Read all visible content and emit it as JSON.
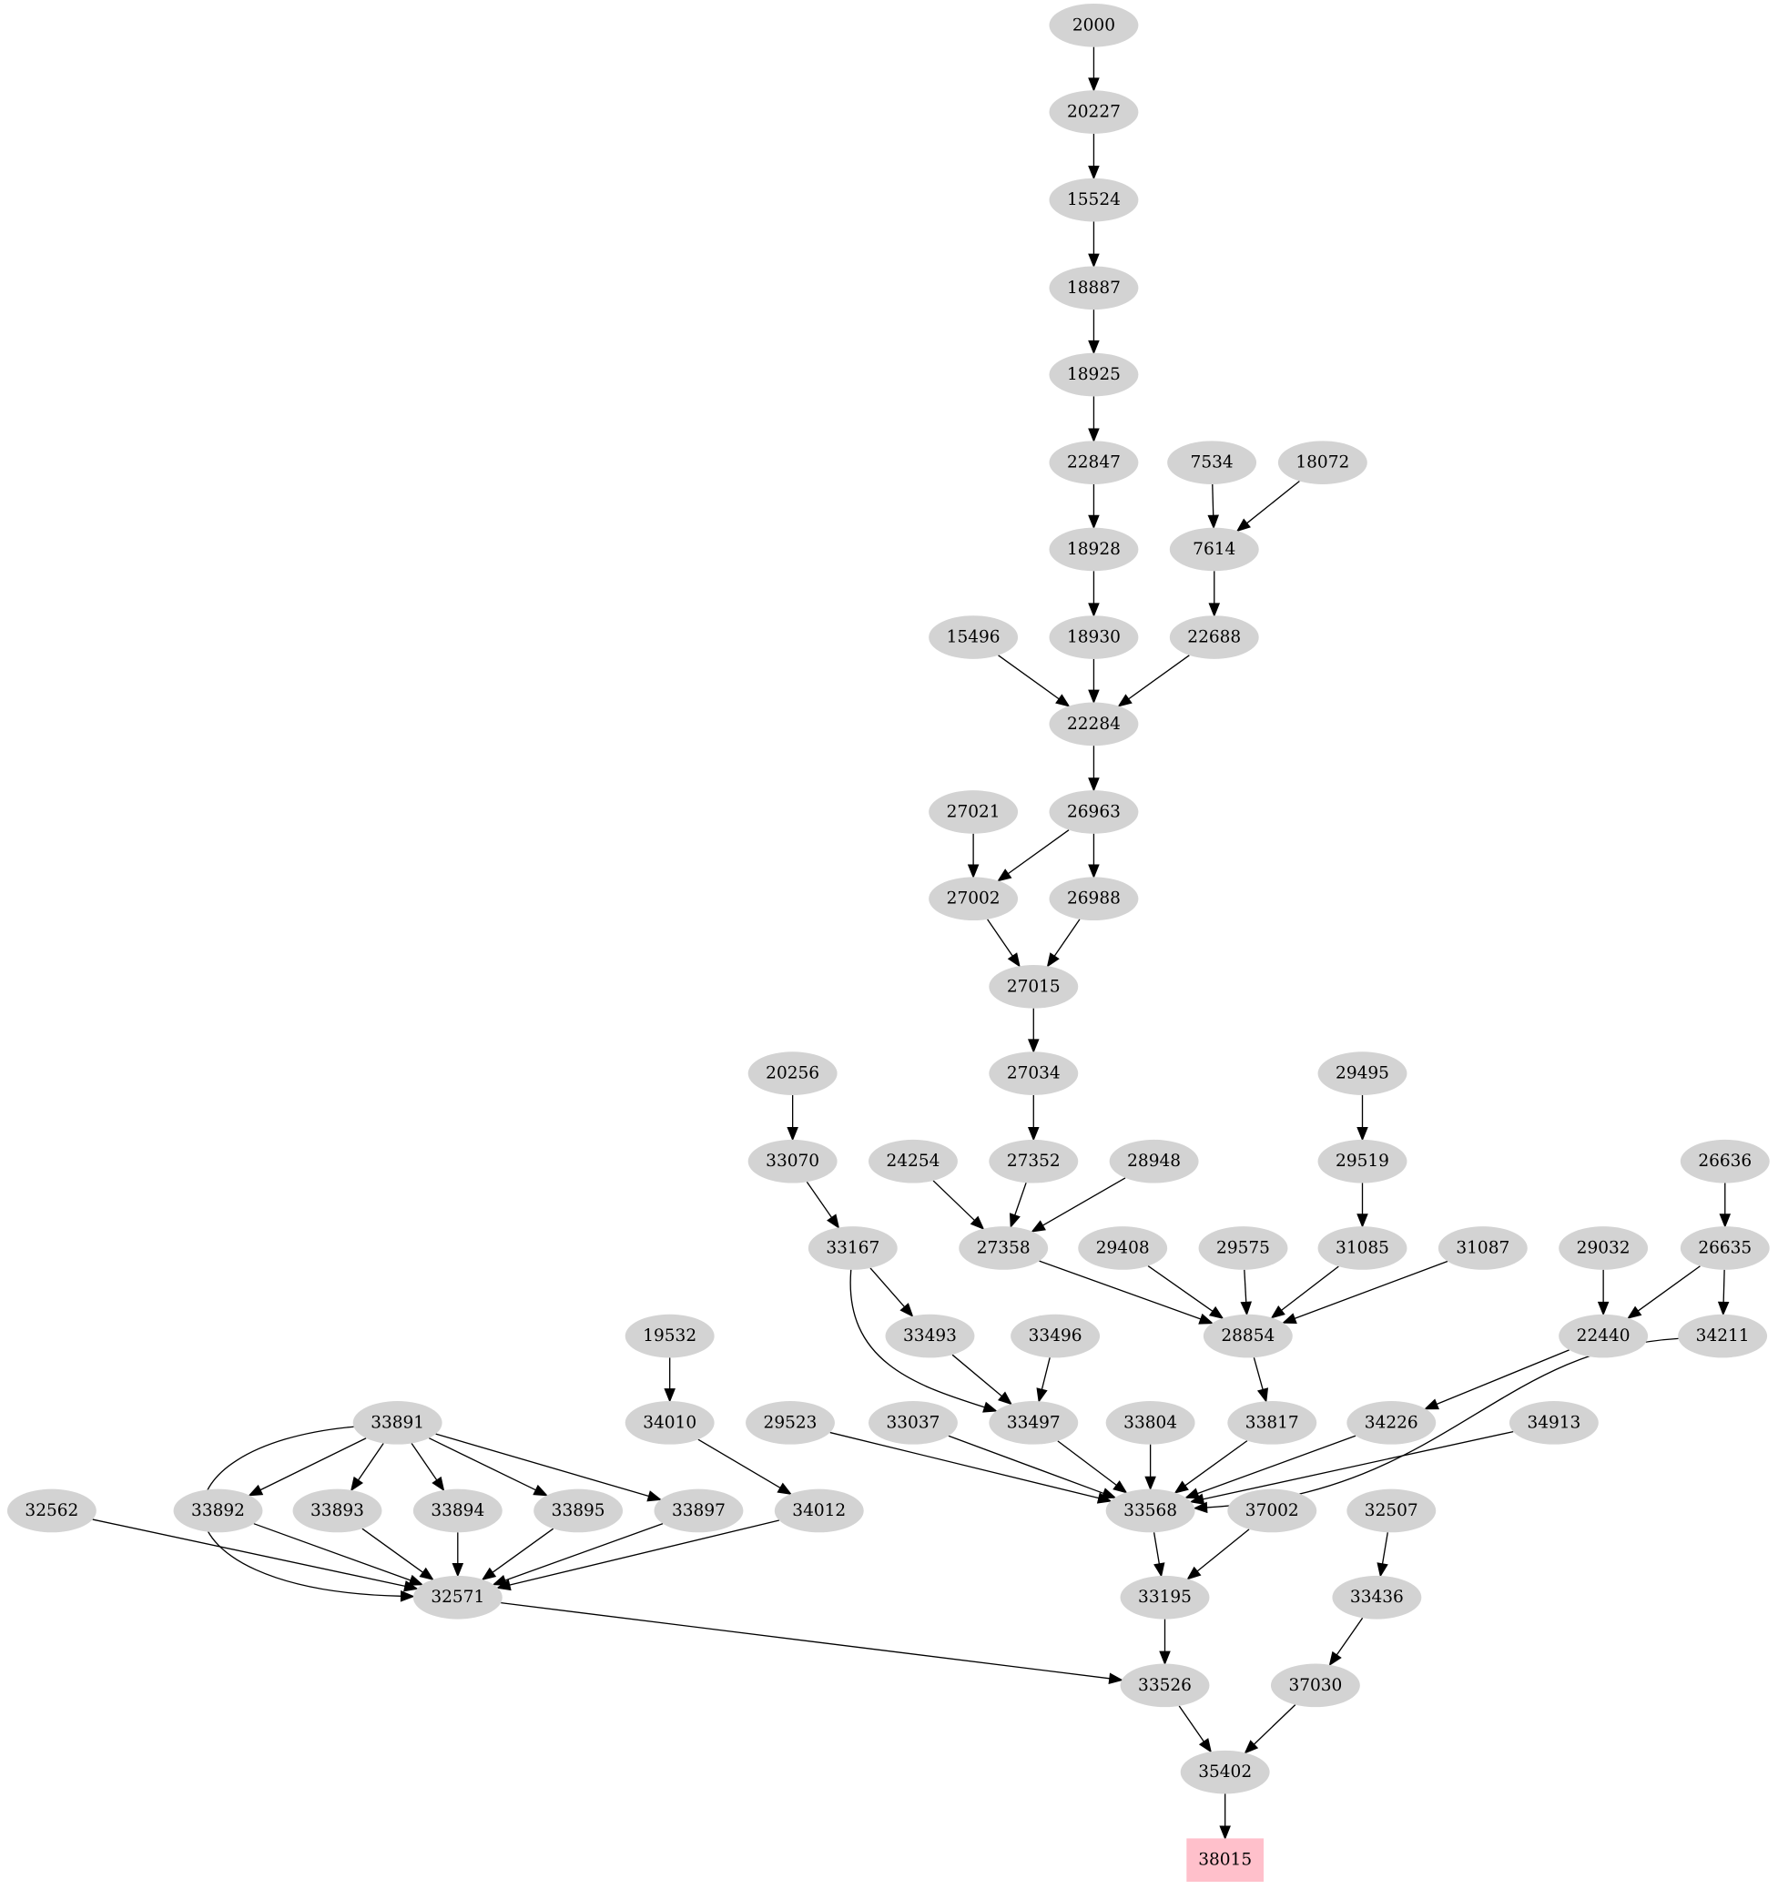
{
  "graph": {
    "node_fill": "#d3d3d3",
    "target_fill": "#ffc0cb",
    "target": "38015",
    "nodes": [
      "2000",
      "20227",
      "15524",
      "18887",
      "18925",
      "22847",
      "7534",
      "18072",
      "18928",
      "7614",
      "15496",
      "18930",
      "22688",
      "22284",
      "27021",
      "26963",
      "27002",
      "26988",
      "27015",
      "20256",
      "27034",
      "29495",
      "33070",
      "24254",
      "27352",
      "28948",
      "29519",
      "26636",
      "33167",
      "27358",
      "29408",
      "29575",
      "31085",
      "31087",
      "29032",
      "26635",
      "19532",
      "33493",
      "33496",
      "28854",
      "22440",
      "34211",
      "33891",
      "34010",
      "29523",
      "33037",
      "33497",
      "33804",
      "33817",
      "34226",
      "34913",
      "32562",
      "33892",
      "33893",
      "33894",
      "33895",
      "33897",
      "34012",
      "33568",
      "37002",
      "32507",
      "32571",
      "33195",
      "33436",
      "33526",
      "37030",
      "35402",
      "38015"
    ],
    "edges": [
      [
        "2000",
        "20227"
      ],
      [
        "20227",
        "15524"
      ],
      [
        "15524",
        "18887"
      ],
      [
        "18887",
        "18925"
      ],
      [
        "18925",
        "22847"
      ],
      [
        "22847",
        "18928"
      ],
      [
        "18928",
        "18930"
      ],
      [
        "7534",
        "7614"
      ],
      [
        "18072",
        "7614"
      ],
      [
        "7614",
        "22688"
      ],
      [
        "15496",
        "22284"
      ],
      [
        "18930",
        "22284"
      ],
      [
        "22688",
        "22284"
      ],
      [
        "22284",
        "26963"
      ],
      [
        "27021",
        "27002"
      ],
      [
        "26963",
        "27002"
      ],
      [
        "26963",
        "26988"
      ],
      [
        "27002",
        "27015"
      ],
      [
        "26988",
        "27015"
      ],
      [
        "27015",
        "27034"
      ],
      [
        "27034",
        "27352"
      ],
      [
        "20256",
        "33070"
      ],
      [
        "33070",
        "33167"
      ],
      [
        "24254",
        "27358"
      ],
      [
        "27352",
        "27358"
      ],
      [
        "28948",
        "27358"
      ],
      [
        "29495",
        "29519"
      ],
      [
        "29519",
        "31085"
      ],
      [
        "26636",
        "26635"
      ],
      [
        "33167",
        "33493"
      ],
      [
        "33167",
        "33497"
      ],
      [
        "27358",
        "28854"
      ],
      [
        "29408",
        "28854"
      ],
      [
        "29575",
        "28854"
      ],
      [
        "31085",
        "28854"
      ],
      [
        "31087",
        "28854"
      ],
      [
        "29032",
        "22440"
      ],
      [
        "26635",
        "22440"
      ],
      [
        "26635",
        "34211"
      ],
      [
        "19532",
        "34010"
      ],
      [
        "33493",
        "33497"
      ],
      [
        "33496",
        "33497"
      ],
      [
        "28854",
        "33817"
      ],
      [
        "22440",
        "34226"
      ],
      [
        "34211",
        "33568"
      ],
      [
        "33891",
        "33892"
      ],
      [
        "33891",
        "33893"
      ],
      [
        "33891",
        "33894"
      ],
      [
        "33891",
        "33895"
      ],
      [
        "33891",
        "33897"
      ],
      [
        "33891",
        "32571"
      ],
      [
        "34010",
        "34012"
      ],
      [
        "29523",
        "33568"
      ],
      [
        "33037",
        "33568"
      ],
      [
        "33497",
        "33568"
      ],
      [
        "33804",
        "33568"
      ],
      [
        "33817",
        "33568"
      ],
      [
        "34226",
        "33568"
      ],
      [
        "34913",
        "33568"
      ],
      [
        "32562",
        "32571"
      ],
      [
        "33892",
        "32571"
      ],
      [
        "33893",
        "32571"
      ],
      [
        "33894",
        "32571"
      ],
      [
        "33895",
        "32571"
      ],
      [
        "33897",
        "32571"
      ],
      [
        "34012",
        "32571"
      ],
      [
        "33568",
        "33195"
      ],
      [
        "37002",
        "33195"
      ],
      [
        "32507",
        "33436"
      ],
      [
        "32571",
        "33526"
      ],
      [
        "33195",
        "33526"
      ],
      [
        "33436",
        "37030"
      ],
      [
        "33526",
        "35402"
      ],
      [
        "37030",
        "35402"
      ],
      [
        "35402",
        "38015"
      ]
    ]
  }
}
